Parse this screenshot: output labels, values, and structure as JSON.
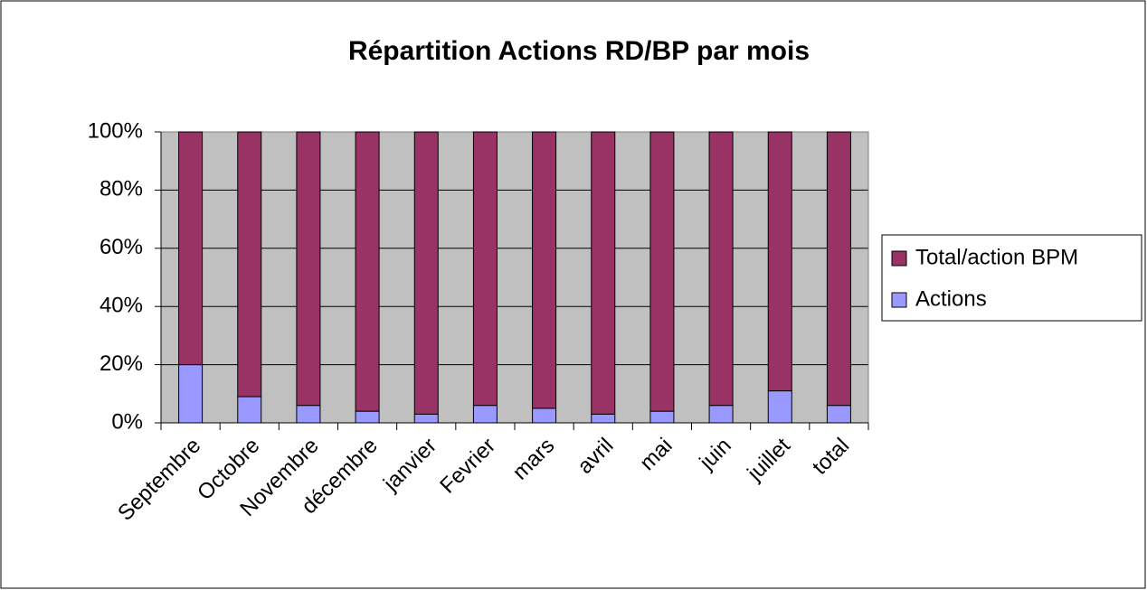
{
  "chart_data": {
    "type": "stacked_bar",
    "title": "Répartition Actions RD/BP par mois",
    "categories": [
      "Septembre",
      "Octobre",
      "Novembre",
      "décembre",
      "janvier",
      "Fevrier",
      "mars",
      "avril",
      "mai",
      "juin",
      "juillet",
      "total"
    ],
    "series": [
      {
        "name": "Actions",
        "color": "#9999ff",
        "values": [
          20,
          9,
          6,
          4,
          3,
          6,
          5,
          3,
          4,
          6,
          11,
          6
        ]
      },
      {
        "name": "Total/action BPM",
        "color": "#993366",
        "values": [
          80,
          91,
          94,
          96,
          97,
          94,
          95,
          97,
          96,
          94,
          89,
          94
        ]
      }
    ],
    "ylim": [
      0,
      100
    ],
    "yticks": [
      {
        "value": 0,
        "label": "0%"
      },
      {
        "value": 20,
        "label": "20%"
      },
      {
        "value": 40,
        "label": "40%"
      },
      {
        "value": 60,
        "label": "60%"
      },
      {
        "value": 80,
        "label": "80%"
      },
      {
        "value": 100,
        "label": "100%"
      }
    ],
    "grid": true,
    "legend": "right"
  }
}
